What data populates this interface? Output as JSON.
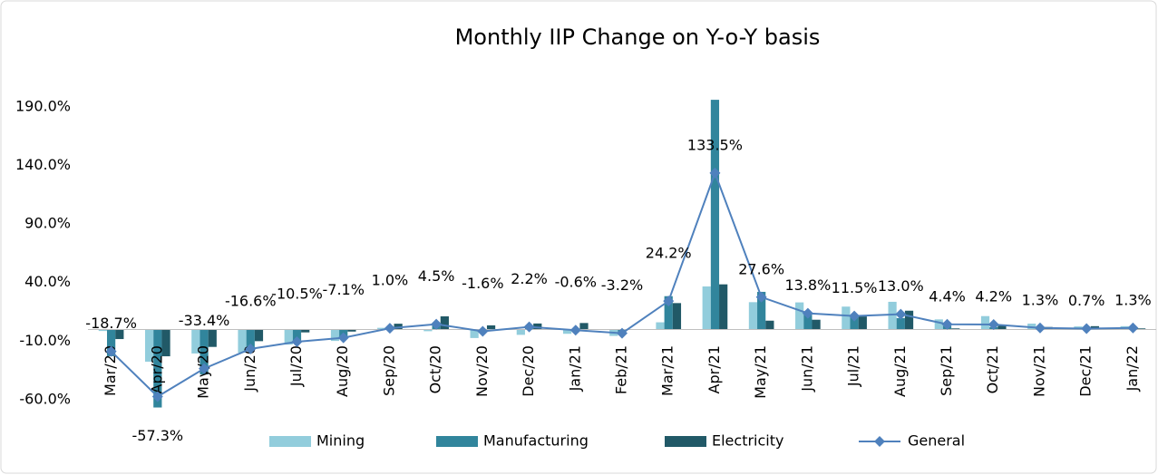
{
  "chart_data": {
    "type": "bar",
    "title": "Monthly IIP Change on Y-o-Y basis",
    "categories": [
      "Mar/20",
      "Apr/20",
      "May/20",
      "Jun/20",
      "Jul/20",
      "Aug/20",
      "Sep/20",
      "Oct/20",
      "Nov/20",
      "Dec/20",
      "Jan/21",
      "Feb/21",
      "Mar/21",
      "Apr/21",
      "May/21",
      "Jun/21",
      "Jul/21",
      "Aug/21",
      "Sep/21",
      "Oct/21",
      "Nov/21",
      "Dec/21",
      "Jan/22"
    ],
    "series": [
      {
        "name": "Mining",
        "color": "#92cddc",
        "type": "bar",
        "values": [
          -1.3,
          -27.5,
          -20.5,
          -19.8,
          -12.9,
          -9.8,
          1.4,
          -1.5,
          -7.3,
          -4.6,
          -3.7,
          -5.5,
          6.1,
          36.7,
          23.3,
          23.1,
          19.5,
          23.6,
          8.6,
          11.4,
          5.0,
          2.6,
          2.8
        ]
      },
      {
        "name": "Manufacturing",
        "color": "#31859c",
        "type": "bar",
        "values": [
          -22.8,
          -66.6,
          -38.4,
          -17.1,
          -11.1,
          -7.6,
          0.6,
          3.5,
          -1.6,
          2.7,
          -0.9,
          -3.7,
          28.4,
          196.0,
          32.1,
          13.0,
          10.5,
          9.7,
          3.0,
          2.0,
          0.3,
          0.3,
          1.1
        ]
      },
      {
        "name": "Electricity",
        "color": "#215967",
        "type": "bar",
        "values": [
          -8.2,
          -22.9,
          -14.9,
          -10.0,
          -2.5,
          -1.8,
          4.9,
          11.2,
          3.5,
          5.1,
          5.5,
          0.1,
          22.5,
          38.5,
          7.5,
          8.3,
          11.1,
          16.0,
          0.9,
          3.1,
          2.1,
          2.8,
          0.9
        ]
      },
      {
        "name": "General",
        "color": "#4f81bd",
        "type": "line",
        "values": [
          -18.7,
          -57.3,
          -33.4,
          -16.6,
          -10.5,
          -7.1,
          1.0,
          4.5,
          -1.6,
          2.2,
          -0.6,
          -3.2,
          24.2,
          133.5,
          27.6,
          13.8,
          11.5,
          13.0,
          4.4,
          4.2,
          1.3,
          0.7,
          1.3
        ],
        "value_labels": [
          "-18.7%",
          "-57.3%",
          "-33.4%",
          "-16.6%",
          "-10.5%",
          "-7.1%",
          "1.0%",
          "4.5%",
          "-1.6%",
          "2.2%",
          "-0.6%",
          "-3.2%",
          "24.2%",
          "133.5%",
          "27.6%",
          "13.8%",
          "11.5%",
          "13.0%",
          "4.4%",
          "4.2%",
          "1.3%",
          "0.7%",
          "1.3%"
        ]
      }
    ],
    "ylim": [
      -60,
      210
    ],
    "yticks": [
      {
        "value": -60,
        "label": "-60.0%"
      },
      {
        "value": -10,
        "label": "-10.0%"
      },
      {
        "value": 40,
        "label": "40.0%"
      },
      {
        "value": 90,
        "label": "90.0%"
      },
      {
        "value": 140,
        "label": "140.0%"
      },
      {
        "value": 190,
        "label": "190.0%"
      }
    ],
    "grid": false,
    "legend": "bottom"
  }
}
